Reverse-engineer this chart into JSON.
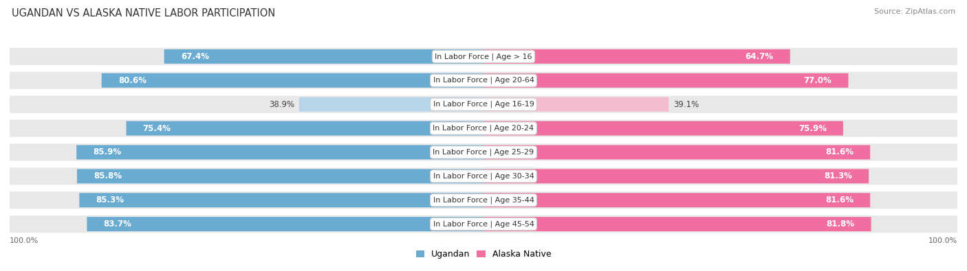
{
  "title": "UGANDAN VS ALASKA NATIVE LABOR PARTICIPATION",
  "source": "Source: ZipAtlas.com",
  "categories": [
    "In Labor Force | Age > 16",
    "In Labor Force | Age 20-64",
    "In Labor Force | Age 16-19",
    "In Labor Force | Age 20-24",
    "In Labor Force | Age 25-29",
    "In Labor Force | Age 30-34",
    "In Labor Force | Age 35-44",
    "In Labor Force | Age 45-54"
  ],
  "ugandan_values": [
    67.4,
    80.6,
    38.9,
    75.4,
    85.9,
    85.8,
    85.3,
    83.7
  ],
  "alaska_values": [
    64.7,
    77.0,
    39.1,
    75.9,
    81.6,
    81.3,
    81.6,
    81.8
  ],
  "ugandan_color": "#6AABD2",
  "ugandan_light_color": "#B8D4E8",
  "alaska_color": "#F06FA0",
  "alaska_light_color": "#F5BBCE",
  "row_bg_color": "#E8E8E8",
  "label_fontsize": 8.0,
  "title_fontsize": 10.5,
  "legend_fontsize": 9,
  "value_fontsize": 8.5,
  "max_value": 100.0
}
